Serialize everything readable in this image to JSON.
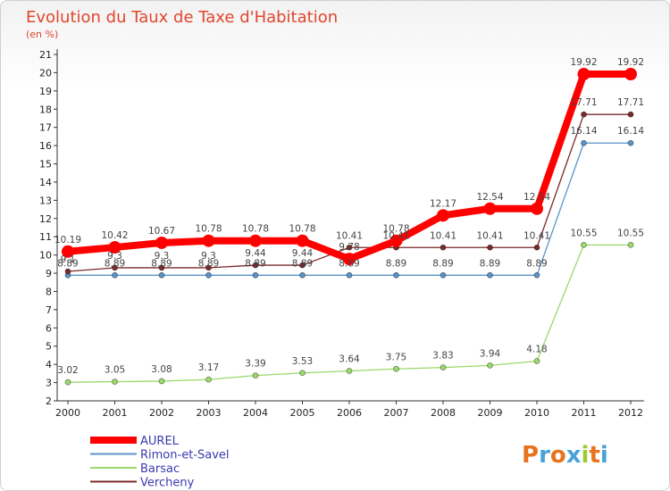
{
  "chart_data": {
    "type": "line",
    "title": "Evolution du Taux de Taxe d'Habitation",
    "subtitle": "(en %)",
    "categories": [
      "2000",
      "2001",
      "2002",
      "2003",
      "2004",
      "2005",
      "2006",
      "2007",
      "2008",
      "2009",
      "2010",
      "2011",
      "2012"
    ],
    "y_ticks": [
      2,
      3,
      4,
      5,
      6,
      7,
      8,
      9,
      10,
      11,
      12,
      13,
      14,
      15,
      16,
      17,
      18,
      19,
      20,
      21
    ],
    "ylim": [
      2,
      21
    ],
    "grid": false,
    "legend_position": "bottom-left",
    "series": [
      {
        "name": "AUREL",
        "color": "#ff0000",
        "values": [
          10.19,
          10.42,
          10.67,
          10.78,
          10.78,
          10.78,
          9.78,
          10.78,
          12.17,
          12.54,
          12.54,
          19.92,
          19.92
        ],
        "labels": [
          "10.19",
          "10.42",
          "10.67",
          "10.78",
          "10.78",
          "10.78",
          "9.78",
          "10.78",
          "12.17",
          "12.54",
          "12.54",
          "19.92",
          "19.92"
        ]
      },
      {
        "name": "Rimon-et-Savel",
        "color": "#5b93c8",
        "values": [
          8.89,
          8.89,
          8.89,
          8.89,
          8.89,
          8.89,
          8.89,
          8.89,
          8.89,
          8.89,
          8.89,
          16.14,
          16.14
        ],
        "labels": [
          "8.89",
          "8.89",
          "8.89",
          "8.89",
          "8.89",
          "8.89",
          "8.89",
          "8.89",
          "8.89",
          "8.89",
          "8.89",
          "16.14",
          "16.14"
        ]
      },
      {
        "name": "Barsac",
        "color": "#9ad96a",
        "values": [
          3.02,
          3.05,
          3.08,
          3.17,
          3.39,
          3.53,
          3.64,
          3.75,
          3.83,
          3.94,
          4.18,
          10.55,
          10.55
        ],
        "labels": [
          "3.02",
          "3.05",
          "3.08",
          "3.17",
          "3.39",
          "3.53",
          "3.64",
          "3.75",
          "3.83",
          "3.94",
          "4.18",
          "10.55",
          "10.55"
        ]
      },
      {
        "name": "Vercheny",
        "color": "#7a2a2a",
        "values": [
          9.1,
          9.3,
          9.3,
          9.3,
          9.44,
          9.44,
          10.41,
          10.41,
          10.41,
          10.41,
          10.41,
          17.71,
          17.71
        ],
        "labels": [
          "9.1",
          "9.3",
          "9.3",
          "9.3",
          "9.44",
          "9.44",
          "10.41",
          "10.41",
          "10.41",
          "10.41",
          "10.41",
          "17.71",
          "17.71"
        ]
      }
    ]
  },
  "logo": {
    "text": "Proxiti",
    "colors": [
      "#e8731e",
      "#4aa3d8",
      "#e8731e",
      "#4aa3d8",
      "#9acd32",
      "#e8731e",
      "#4aa3d8"
    ]
  }
}
